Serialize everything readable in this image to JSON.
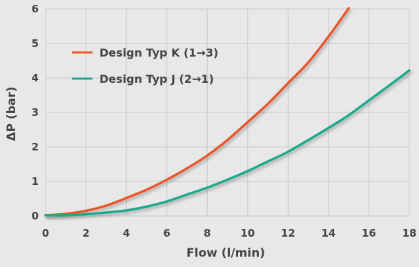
{
  "chart_data": {
    "type": "line",
    "xlabel": "Flow (l/min)",
    "ylabel": "ΔP (bar)",
    "xlim": [
      0,
      18
    ],
    "ylim": [
      0,
      6
    ],
    "xticks": [
      0,
      2,
      4,
      6,
      8,
      10,
      12,
      14,
      16,
      18
    ],
    "yticks": [
      0,
      1,
      2,
      3,
      4,
      5,
      6
    ],
    "grid": true,
    "legend_position": "top-left",
    "background_color": "#e8e8e8",
    "grid_color": "#c8c8c8",
    "text_color": "#444444",
    "series": [
      {
        "name": "Design Typ K (1→3)",
        "color": "#e8562a",
        "x": [
          0,
          1,
          2,
          3,
          4,
          5,
          6,
          7,
          8,
          9,
          10,
          11,
          12,
          13,
          14,
          15
        ],
        "y": [
          0.02,
          0.06,
          0.15,
          0.3,
          0.52,
          0.76,
          1.05,
          1.38,
          1.75,
          2.2,
          2.72,
          3.25,
          3.85,
          4.45,
          5.2,
          6.02
        ]
      },
      {
        "name": "Design Typ J (2→1)",
        "color": "#1aa98b",
        "x": [
          0,
          1,
          2,
          3,
          4,
          5,
          6,
          7,
          8,
          9,
          10,
          11,
          12,
          13,
          14,
          15,
          16,
          17,
          18
        ],
        "y": [
          0.02,
          0.02,
          0.05,
          0.1,
          0.16,
          0.27,
          0.42,
          0.62,
          0.82,
          1.05,
          1.3,
          1.58,
          1.86,
          2.2,
          2.55,
          2.92,
          3.35,
          3.78,
          4.22
        ]
      }
    ]
  }
}
